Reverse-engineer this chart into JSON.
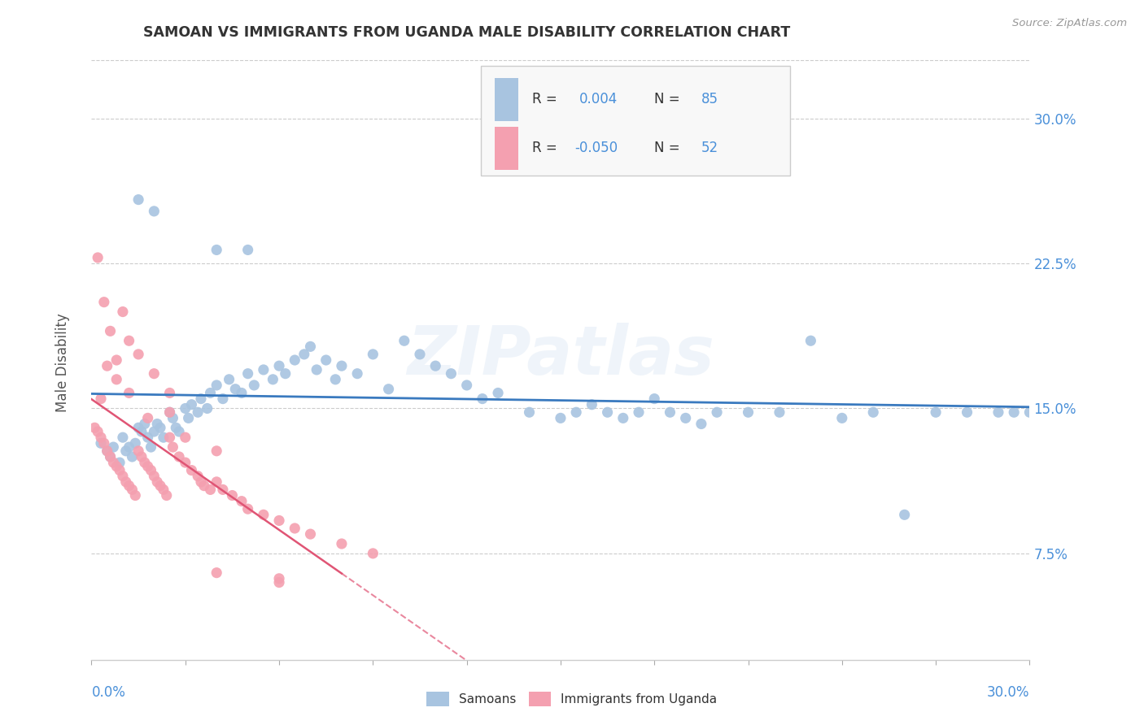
{
  "title": "SAMOAN VS IMMIGRANTS FROM UGANDA MALE DISABILITY CORRELATION CHART",
  "source": "Source: ZipAtlas.com",
  "ylabel": "Male Disability",
  "ytick_labels": [
    "7.5%",
    "15.0%",
    "22.5%",
    "30.0%"
  ],
  "ytick_values": [
    0.075,
    0.15,
    0.225,
    0.3
  ],
  "xmin": 0.0,
  "xmax": 0.3,
  "ymin": 0.02,
  "ymax": 0.335,
  "samoan_color": "#a8c4e0",
  "uganda_color": "#f4a0b0",
  "trendline_samoan_color": "#3a7abf",
  "trendline_uganda_color": "#e05575",
  "watermark": "ZIPatlas",
  "samoan_x": [
    0.003,
    0.005,
    0.006,
    0.007,
    0.009,
    0.01,
    0.011,
    0.012,
    0.013,
    0.014,
    0.015,
    0.016,
    0.017,
    0.018,
    0.019,
    0.02,
    0.021,
    0.022,
    0.023,
    0.025,
    0.026,
    0.027,
    0.028,
    0.03,
    0.031,
    0.032,
    0.034,
    0.035,
    0.037,
    0.038,
    0.04,
    0.042,
    0.044,
    0.046,
    0.048,
    0.05,
    0.052,
    0.055,
    0.058,
    0.06,
    0.062,
    0.065,
    0.068,
    0.07,
    0.072,
    0.075,
    0.078,
    0.08,
    0.085,
    0.09,
    0.095,
    0.1,
    0.105,
    0.11,
    0.115,
    0.12,
    0.125,
    0.13,
    0.14,
    0.15,
    0.155,
    0.16,
    0.165,
    0.17,
    0.175,
    0.18,
    0.185,
    0.19,
    0.195,
    0.2,
    0.21,
    0.22,
    0.23,
    0.24,
    0.25,
    0.26,
    0.27,
    0.28,
    0.29,
    0.3,
    0.015,
    0.02,
    0.04,
    0.05,
    0.295
  ],
  "samoan_y": [
    0.132,
    0.128,
    0.125,
    0.13,
    0.122,
    0.135,
    0.128,
    0.13,
    0.125,
    0.132,
    0.14,
    0.138,
    0.142,
    0.135,
    0.13,
    0.138,
    0.142,
    0.14,
    0.135,
    0.148,
    0.145,
    0.14,
    0.138,
    0.15,
    0.145,
    0.152,
    0.148,
    0.155,
    0.15,
    0.158,
    0.162,
    0.155,
    0.165,
    0.16,
    0.158,
    0.168,
    0.162,
    0.17,
    0.165,
    0.172,
    0.168,
    0.175,
    0.178,
    0.182,
    0.17,
    0.175,
    0.165,
    0.172,
    0.168,
    0.178,
    0.16,
    0.185,
    0.178,
    0.172,
    0.168,
    0.162,
    0.155,
    0.158,
    0.148,
    0.145,
    0.148,
    0.152,
    0.148,
    0.145,
    0.148,
    0.155,
    0.148,
    0.145,
    0.142,
    0.148,
    0.148,
    0.148,
    0.185,
    0.145,
    0.148,
    0.095,
    0.148,
    0.148,
    0.148,
    0.148,
    0.258,
    0.252,
    0.232,
    0.232,
    0.148
  ],
  "uganda_x": [
    0.001,
    0.002,
    0.003,
    0.004,
    0.005,
    0.006,
    0.007,
    0.008,
    0.009,
    0.01,
    0.011,
    0.012,
    0.013,
    0.014,
    0.015,
    0.016,
    0.017,
    0.018,
    0.019,
    0.02,
    0.021,
    0.022,
    0.023,
    0.024,
    0.025,
    0.026,
    0.028,
    0.03,
    0.032,
    0.034,
    0.036,
    0.038,
    0.04,
    0.042,
    0.045,
    0.048,
    0.05,
    0.055,
    0.06,
    0.065,
    0.07,
    0.08,
    0.09,
    0.003,
    0.005,
    0.008,
    0.012,
    0.018,
    0.025,
    0.035,
    0.04,
    0.06
  ],
  "uganda_y": [
    0.14,
    0.138,
    0.135,
    0.132,
    0.128,
    0.125,
    0.122,
    0.12,
    0.118,
    0.115,
    0.112,
    0.11,
    0.108,
    0.105,
    0.128,
    0.125,
    0.122,
    0.12,
    0.118,
    0.115,
    0.112,
    0.11,
    0.108,
    0.105,
    0.135,
    0.13,
    0.125,
    0.122,
    0.118,
    0.115,
    0.11,
    0.108,
    0.112,
    0.108,
    0.105,
    0.102,
    0.098,
    0.095,
    0.092,
    0.088,
    0.085,
    0.08,
    0.075,
    0.155,
    0.172,
    0.165,
    0.158,
    0.145,
    0.148,
    0.112,
    0.065,
    0.062
  ],
  "uganda_extra_x": [
    0.002,
    0.004,
    0.006,
    0.008,
    0.01,
    0.012,
    0.015,
    0.02,
    0.025,
    0.03,
    0.04,
    0.06
  ],
  "uganda_extra_y": [
    0.228,
    0.205,
    0.19,
    0.175,
    0.2,
    0.185,
    0.178,
    0.168,
    0.158,
    0.135,
    0.128,
    0.06
  ]
}
